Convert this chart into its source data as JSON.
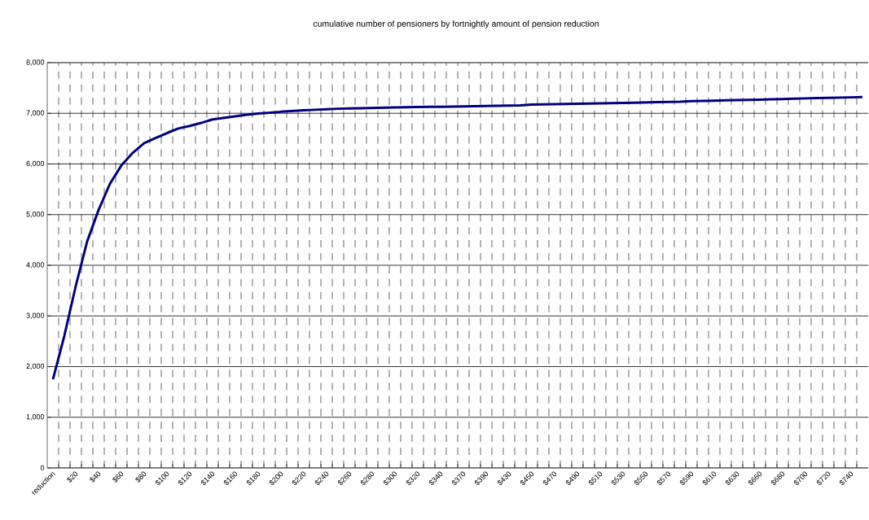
{
  "chart_data": {
    "type": "line",
    "title": "cumulative number of pensioners by fortnightly amount of pension reduction",
    "categories": [
      "reduction",
      null,
      "$20",
      null,
      "$40",
      null,
      "$60",
      null,
      "$80",
      null,
      "$100",
      null,
      "$120",
      null,
      "$140",
      null,
      "$160",
      null,
      "$180",
      null,
      "$200",
      null,
      "$220",
      null,
      "$240",
      null,
      "$260",
      null,
      "$280",
      null,
      "$300",
      null,
      "$320",
      null,
      "$340",
      null,
      "$370",
      null,
      "$390",
      null,
      "$430",
      null,
      "$450",
      null,
      "$470",
      null,
      "$490",
      null,
      "$510",
      null,
      "$530",
      null,
      "$550",
      null,
      "$570",
      null,
      "$590",
      null,
      "$610",
      null,
      "$630",
      null,
      "$660",
      null,
      "$680",
      null,
      "$700",
      null,
      "$720",
      null,
      "$740",
      null
    ],
    "series": [
      {
        "color": "#000080",
        "values": [
          1750,
          2610,
          3590,
          4470,
          5090,
          5610,
          5970,
          6220,
          6410,
          6510,
          6610,
          6700,
          6750,
          6810,
          6880,
          6910,
          6940,
          6970,
          6995,
          7010,
          7030,
          7045,
          7060,
          7070,
          7080,
          7090,
          7095,
          7100,
          7105,
          7110,
          7115,
          7120,
          7125,
          7128,
          7130,
          7133,
          7136,
          7140,
          7144,
          7148,
          7152,
          7158,
          7172,
          7175,
          7180,
          7185,
          7190,
          7193,
          7196,
          7200,
          7205,
          7210,
          7215,
          7220,
          7225,
          7230,
          7240,
          7245,
          7250,
          7255,
          7260,
          7265,
          7270,
          7275,
          7280,
          7290,
          7295,
          7300,
          7305,
          7310,
          7315,
          7320
        ]
      }
    ],
    "ylim": [
      0,
      8000
    ],
    "yticks": [
      0,
      {
        "value": 1000,
        "label": "1,000"
      },
      {
        "value": 2000,
        "label": "2,000"
      },
      {
        "value": 3000,
        "label": "3,000"
      },
      {
        "value": 4000,
        "label": "4,000"
      },
      {
        "value": 5000,
        "label": "5,000"
      },
      {
        "value": 6000,
        "label": "6,000"
      },
      {
        "value": 7000,
        "label": "7,000"
      },
      {
        "value": 8000,
        "label": "8,000"
      }
    ],
    "grid": true,
    "legend": false,
    "marker": "none",
    "line_style": "solid"
  }
}
